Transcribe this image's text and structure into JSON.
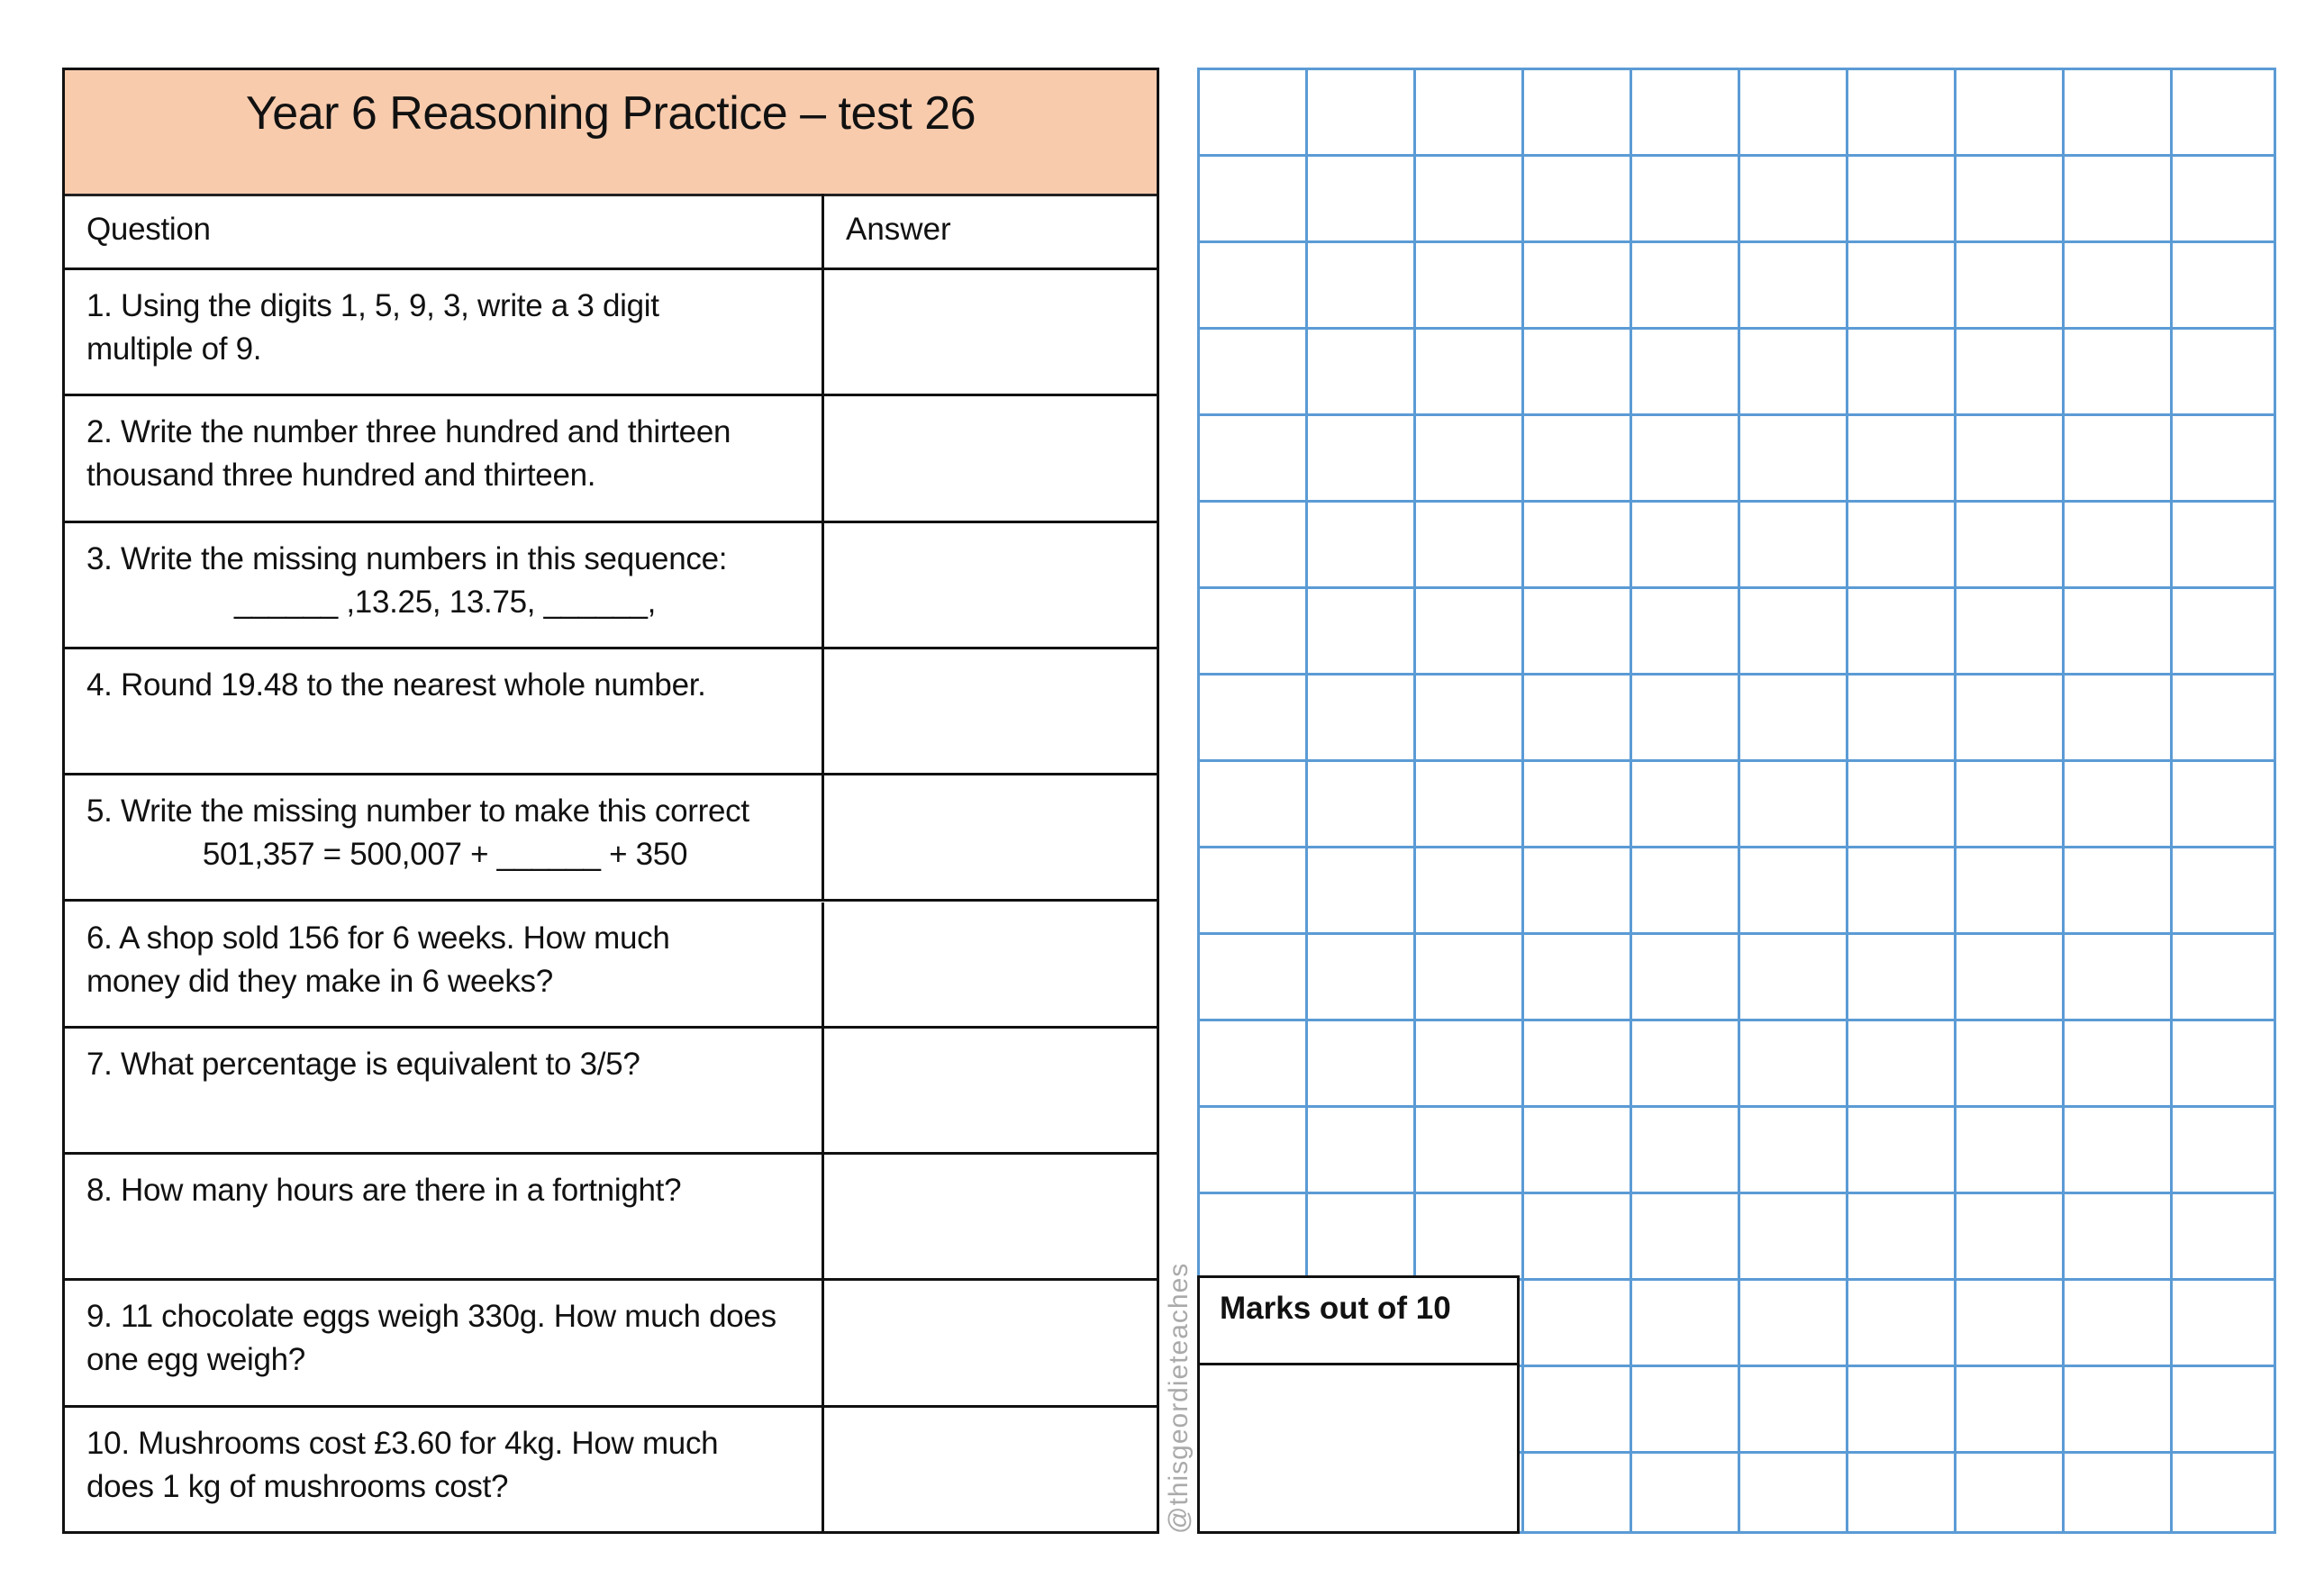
{
  "worksheet": {
    "title": "Year 6 Reasoning Practice – test 26",
    "header": {
      "question": "Question",
      "answer": "Answer"
    },
    "questions": [
      {
        "line1": "1. Using the digits 1, 5, 9, 3, write a 3 digit",
        "line2": "multiple of 9.",
        "answer": ""
      },
      {
        "line1": "2. Write the number three hundred and thirteen",
        "line2": "thousand three hundred and thirteen.",
        "answer": ""
      },
      {
        "line1": "3. Write the missing numbers in this sequence:",
        "line2": "______ ,13.25, 13.75, ______,",
        "answer": ""
      },
      {
        "line1": "4. Round 19.48 to the nearest whole number.",
        "line2": "",
        "answer": ""
      },
      {
        "line1": "5. Write the missing number to make this correct",
        "line2": "501,357 = 500,007 + ______ + 350",
        "answer": ""
      },
      {
        "line1": "6. A shop sold 156 for 6 weeks. How much",
        "line2": "money did they make in 6 weeks?",
        "answer": ""
      },
      {
        "line1": "7. What percentage is equivalent to 3/5?",
        "line2": "",
        "answer": ""
      },
      {
        "line1": "8. How many hours are there in a fortnight?",
        "line2": "",
        "answer": ""
      },
      {
        "line1": "9. 11 chocolate eggs weigh 330g. How much does",
        "line2": "one egg weigh?",
        "answer": ""
      },
      {
        "line1": "10. Mushrooms cost £3.60 for 4kg. How much",
        "line2": "does 1 kg of mushrooms cost?",
        "answer": ""
      }
    ]
  },
  "marks": {
    "label": "Marks out of 10",
    "value": ""
  },
  "watermark": "@thisgeordieteaches",
  "colors": {
    "header_fill": "#f8cbad",
    "grid_lines": "#5b9bd5",
    "borders": "#111111"
  }
}
